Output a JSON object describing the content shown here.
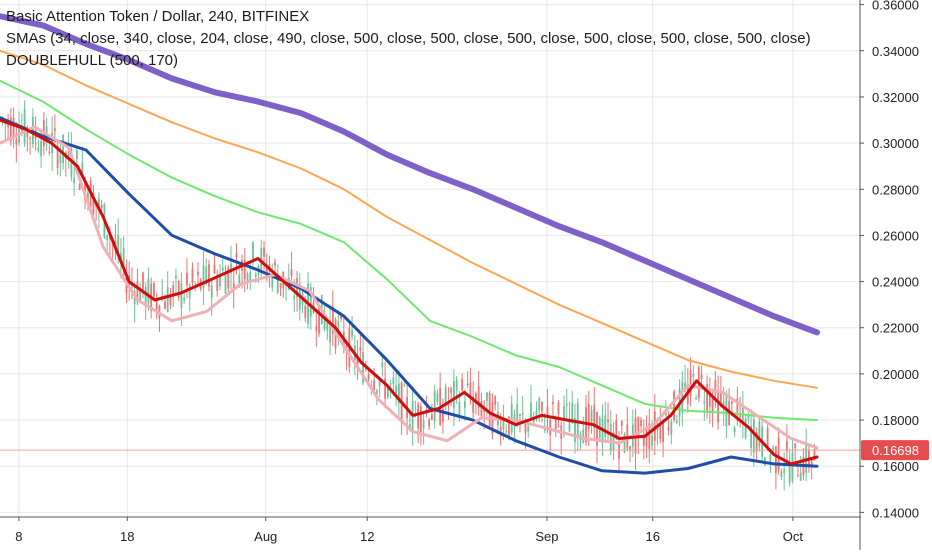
{
  "legend": {
    "title": "Basic Attention Token / Dollar, 240, BITFINEX",
    "smas": "SMAs (34, close, 340, close, 204, close, 490, close, 500, close, 500, close, 500, close, 500, close, 500, close, 500, close)",
    "doublehull": "DOUBLEHULL (500, 170)"
  },
  "colors": {
    "grid": "#e6e6e6",
    "axis": "#555555",
    "price_line": "#f0a0a0",
    "price_badge": "#e74c4c",
    "up_candle": "#6fbf9a",
    "down_candle": "#e87474",
    "sma_purple": "#7e60c8",
    "sma_orange": "#ffa650",
    "sma_green": "#6ee86e",
    "sma_blue": "#1f4ea8",
    "hull_red": "#cc1010",
    "hull_pink": "#f0b0b8"
  },
  "chart_data": {
    "type": "line",
    "title": "Basic Attention Token / Dollar, 240, BITFINEX",
    "ylim": [
      0.138,
      0.362
    ],
    "y_ticks": [
      0.36,
      0.34,
      0.32,
      0.3,
      0.28,
      0.26,
      0.24,
      0.22,
      0.2,
      0.18,
      0.16,
      0.14
    ],
    "y_tick_labels": [
      "0.36000",
      "0.34000",
      "0.32000",
      "0.30000",
      "0.28000",
      "0.26000",
      "0.24000",
      "0.22000",
      "0.20000",
      "0.18000",
      "0.16000",
      "0.14000"
    ],
    "x_range": [
      0,
      100
    ],
    "x_ticks": [
      {
        "x": 2.2,
        "label": "8"
      },
      {
        "x": 14.8,
        "label": "18"
      },
      {
        "x": 30.9,
        "label": "Aug"
      },
      {
        "x": 42.7,
        "label": "12"
      },
      {
        "x": 63.6,
        "label": "Sep"
      },
      {
        "x": 75.9,
        "label": "16"
      },
      {
        "x": 92.2,
        "label": "Oct"
      }
    ],
    "last_price": 0.16698,
    "last_price_label": "0.16698",
    "series": [
      {
        "color": "#7e60c8",
        "width": 6,
        "x": [
          0,
          5,
          10,
          15,
          20,
          25,
          30,
          35,
          40,
          45,
          50,
          55,
          60,
          65,
          70,
          75,
          80,
          85,
          90,
          95
        ],
        "y": [
          0.355,
          0.351,
          0.343,
          0.336,
          0.328,
          0.322,
          0.318,
          0.313,
          0.305,
          0.295,
          0.287,
          0.28,
          0.272,
          0.264,
          0.257,
          0.249,
          0.241,
          0.233,
          0.225,
          0.218
        ]
      },
      {
        "color": "#ffa650",
        "width": 2,
        "x": [
          0,
          5,
          10,
          15,
          20,
          25,
          30,
          35,
          40,
          45,
          50,
          55,
          60,
          65,
          70,
          75,
          80,
          85,
          90,
          95
        ],
        "y": [
          0.34,
          0.334,
          0.325,
          0.317,
          0.309,
          0.302,
          0.296,
          0.289,
          0.28,
          0.268,
          0.258,
          0.248,
          0.239,
          0.23,
          0.222,
          0.214,
          0.206,
          0.201,
          0.197,
          0.194
        ]
      },
      {
        "color": "#6ee86e",
        "width": 2,
        "x": [
          0,
          5,
          10,
          15,
          20,
          25,
          30,
          35,
          40,
          45,
          50,
          55,
          60,
          65,
          70,
          75,
          80,
          85,
          90,
          95
        ],
        "y": [
          0.327,
          0.318,
          0.306,
          0.295,
          0.285,
          0.277,
          0.27,
          0.265,
          0.257,
          0.241,
          0.223,
          0.216,
          0.208,
          0.203,
          0.195,
          0.187,
          0.184,
          0.183,
          0.181,
          0.18
        ]
      },
      {
        "color": "#1f4ea8",
        "width": 3,
        "x": [
          0,
          5,
          10,
          15,
          20,
          25,
          30,
          35,
          40,
          45,
          50,
          55,
          60,
          65,
          70,
          75,
          80,
          85,
          90,
          95
        ],
        "y": [
          0.311,
          0.303,
          0.297,
          0.278,
          0.26,
          0.252,
          0.245,
          0.237,
          0.225,
          0.206,
          0.185,
          0.18,
          0.171,
          0.164,
          0.158,
          0.157,
          0.159,
          0.164,
          0.161,
          0.16
        ]
      },
      {
        "color": "#f0b0b8",
        "width": 3,
        "x": [
          0,
          4,
          8,
          12,
          16,
          20,
          24,
          28,
          32,
          36,
          40,
          44,
          48,
          52,
          56,
          60,
          64,
          68,
          72,
          76,
          80,
          84,
          88,
          92,
          95
        ],
        "y": [
          0.3,
          0.307,
          0.298,
          0.255,
          0.232,
          0.223,
          0.227,
          0.239,
          0.243,
          0.236,
          0.212,
          0.189,
          0.175,
          0.171,
          0.181,
          0.18,
          0.176,
          0.172,
          0.17,
          0.178,
          0.195,
          0.192,
          0.182,
          0.172,
          0.168
        ]
      },
      {
        "color": "#cc1010",
        "width": 3,
        "x": [
          0,
          3,
          6,
          9,
          12,
          15,
          18,
          21,
          24,
          27,
          30,
          33,
          36,
          39,
          42,
          45,
          48,
          51,
          54,
          57,
          60,
          63,
          66,
          69,
          72,
          75,
          78,
          81,
          84,
          87,
          90,
          92,
          95
        ],
        "y": [
          0.31,
          0.306,
          0.3,
          0.29,
          0.268,
          0.24,
          0.232,
          0.235,
          0.24,
          0.245,
          0.25,
          0.24,
          0.23,
          0.22,
          0.205,
          0.195,
          0.182,
          0.185,
          0.192,
          0.183,
          0.178,
          0.182,
          0.18,
          0.178,
          0.172,
          0.173,
          0.182,
          0.197,
          0.186,
          0.177,
          0.165,
          0.161,
          0.164
        ]
      }
    ]
  }
}
